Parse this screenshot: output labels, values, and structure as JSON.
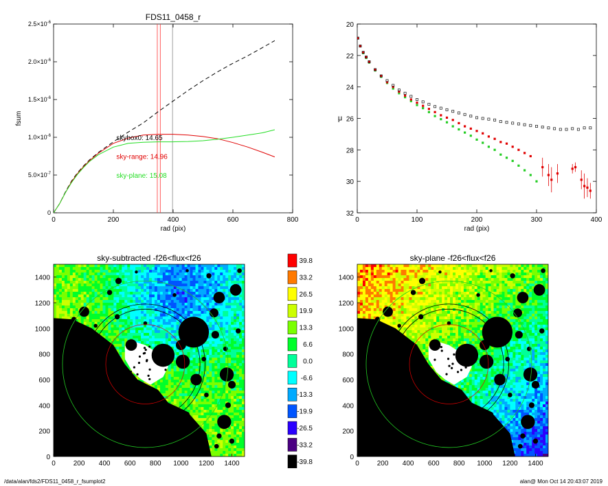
{
  "footer": {
    "path": "/data/alan/fds2/FDS11_0458_r_fsumplot2",
    "stamp": "alan@  Mon Oct 14 20:43:07 2019"
  },
  "chart_data": [
    {
      "type": "line",
      "title": "FDS11_0458_r",
      "xlabel": "rad (pix)",
      "ylabel": "fsum",
      "xlim": [
        0,
        800
      ],
      "ylim": [
        0,
        2.5e-06
      ],
      "xticks": [
        0,
        200,
        400,
        600,
        800
      ],
      "xtick_labels": [
        "0",
        "200",
        "400",
        "600",
        "800"
      ],
      "yticks": [
        0,
        5e-07,
        1e-06,
        1.5e-06,
        2e-06,
        2.5e-06
      ],
      "ytick_labels": [
        {
          "m": "0",
          "e": ""
        },
        {
          "m": "5.0×10",
          "e": "-7"
        },
        {
          "m": "1.0×10",
          "e": "-6"
        },
        {
          "m": "1.5×10",
          "e": "-6"
        },
        {
          "m": "2.0×10",
          "e": "-6"
        },
        {
          "m": "2.5×10",
          "e": "-6"
        }
      ],
      "grid": false,
      "series": [
        {
          "color": "#000000",
          "dash": true,
          "x": [
            0,
            20,
            40,
            60,
            80,
            100,
            120,
            150,
            200,
            250,
            300,
            350,
            400,
            450,
            500,
            550,
            600,
            650,
            700,
            740
          ],
          "y": [
            0,
            1.2e-07,
            2.8e-07,
            4.2e-07,
            5.3e-07,
            6.2e-07,
            7e-07,
            8e-07,
            9.4e-07,
            1.07e-06,
            1.19e-06,
            1.34e-06,
            1.48e-06,
            1.62e-06,
            1.75e-06,
            1.87e-06,
            1.98e-06,
            2.08e-06,
            2.19e-06,
            2.28e-06
          ]
        },
        {
          "color": "#e00000",
          "dash": false,
          "x": [
            0,
            20,
            40,
            60,
            80,
            100,
            120,
            150,
            200,
            250,
            300,
            350,
            400,
            450,
            500,
            550,
            600,
            650,
            700,
            740
          ],
          "y": [
            0,
            1.2e-07,
            2.7e-07,
            4.1e-07,
            5.2e-07,
            6.1e-07,
            6.9e-07,
            7.9e-07,
            9.2e-07,
            9.9e-07,
            1.03e-06,
            1.04e-06,
            1.04e-06,
            1.03e-06,
            1.01e-06,
            9.8e-07,
            9.3e-07,
            8.7e-07,
            8e-07,
            7.4e-07
          ]
        },
        {
          "color": "#22dd22",
          "dash": false,
          "x": [
            0,
            20,
            40,
            60,
            80,
            100,
            120,
            150,
            200,
            250,
            300,
            350,
            400,
            450,
            500,
            550,
            600,
            650,
            700,
            740
          ],
          "y": [
            0,
            1.2e-07,
            2.7e-07,
            4e-07,
            5.1e-07,
            6e-07,
            6.8e-07,
            7.7e-07,
            8.7e-07,
            9.2e-07,
            9.35e-07,
            9.4e-07,
            9.4e-07,
            9.45e-07,
            9.55e-07,
            9.75e-07,
            1e-06,
            1.03e-06,
            1.06e-06,
            1.1e-06
          ]
        }
      ],
      "vlines": [
        {
          "x": 347,
          "color": "#ff3333"
        },
        {
          "x": 357,
          "color": "#ff3333"
        },
        {
          "x": 398,
          "color": "#888888"
        }
      ],
      "annotations": [
        {
          "text": "skybox0: 14.65",
          "x": 210,
          "y": 1e-06,
          "color": "#000000"
        },
        {
          "text": "sky-range: 14.96",
          "x": 210,
          "y": 7.5e-07,
          "color": "#e00000"
        },
        {
          "text": "sky-plane: 15.08",
          "x": 210,
          "y": 5e-07,
          "color": "#22dd22"
        }
      ]
    },
    {
      "type": "scatter",
      "title": "",
      "xlabel": "rad (pix)",
      "ylabel": "μ",
      "xlim": [
        0,
        400
      ],
      "ylim": [
        32,
        20
      ],
      "xticks": [
        0,
        100,
        200,
        300,
        400
      ],
      "yticks": [
        20,
        22,
        24,
        26,
        28,
        30,
        32
      ],
      "grid": false,
      "series": [
        {
          "color": "#111111",
          "marker": "square-open",
          "x": [
            1,
            5,
            10,
            15,
            20,
            30,
            40,
            50,
            60,
            70,
            80,
            90,
            100,
            110,
            120,
            130,
            140,
            150,
            160,
            170,
            180,
            190,
            200,
            210,
            220,
            230,
            240,
            250,
            260,
            270,
            280,
            290,
            300,
            310,
            320,
            330,
            340,
            350,
            360,
            370,
            380,
            390
          ],
          "y": [
            20.9,
            21.4,
            21.8,
            22.1,
            22.4,
            22.9,
            23.3,
            23.6,
            23.9,
            24.2,
            24.4,
            24.6,
            24.8,
            24.95,
            25.1,
            25.25,
            25.35,
            25.45,
            25.55,
            25.65,
            25.75,
            25.85,
            25.95,
            26.0,
            26.05,
            26.1,
            26.2,
            26.25,
            26.3,
            26.35,
            26.4,
            26.45,
            26.5,
            26.55,
            26.6,
            26.65,
            26.7,
            26.7,
            26.65,
            26.7,
            26.6,
            26.6
          ]
        },
        {
          "color": "#e00000",
          "marker": "square-filled",
          "x": [
            1,
            5,
            10,
            15,
            20,
            30,
            40,
            50,
            60,
            70,
            80,
            90,
            100,
            110,
            120,
            130,
            140,
            150,
            160,
            170,
            180,
            190,
            200,
            210,
            220,
            230,
            240,
            250,
            260,
            270,
            280,
            290
          ],
          "y": [
            20.9,
            21.4,
            21.8,
            22.1,
            22.4,
            22.9,
            23.3,
            23.7,
            24.0,
            24.3,
            24.55,
            24.8,
            25.0,
            25.2,
            25.4,
            25.6,
            25.8,
            25.95,
            26.1,
            26.3,
            26.5,
            26.65,
            26.8,
            26.95,
            27.15,
            27.3,
            27.5,
            27.6,
            27.8,
            28.0,
            28.2,
            28.4
          ]
        },
        {
          "color": "#22cc22",
          "marker": "square-filled",
          "x": [
            1,
            5,
            10,
            15,
            20,
            30,
            40,
            50,
            60,
            70,
            80,
            90,
            100,
            110,
            120,
            130,
            140,
            150,
            160,
            170,
            180,
            190,
            200,
            210,
            220,
            230,
            240,
            250,
            260,
            270,
            280,
            290,
            300
          ],
          "y": [
            20.9,
            21.4,
            21.85,
            22.15,
            22.45,
            22.95,
            23.35,
            23.75,
            24.1,
            24.4,
            24.65,
            24.9,
            25.15,
            25.35,
            25.6,
            25.85,
            26.05,
            26.25,
            26.5,
            26.7,
            26.9,
            27.1,
            27.35,
            27.55,
            27.8,
            28.0,
            28.3,
            28.5,
            28.7,
            29.0,
            29.3,
            29.6,
            30.0
          ]
        }
      ],
      "errorbars": [
        {
          "x": 310,
          "y": 29.1,
          "e": 0.6
        },
        {
          "x": 320,
          "y": 29.6,
          "e": 0.7
        },
        {
          "x": 325,
          "y": 29.9,
          "e": 0.8
        },
        {
          "x": 335,
          "y": 29.5,
          "e": 0.6
        },
        {
          "x": 360,
          "y": 29.2,
          "e": 0.3
        },
        {
          "x": 365,
          "y": 29.1,
          "e": 0.3
        },
        {
          "x": 375,
          "y": 29.9,
          "e": 0.6
        },
        {
          "x": 380,
          "y": 30.3,
          "e": 0.8
        },
        {
          "x": 385,
          "y": 30.4,
          "e": 0.6
        },
        {
          "x": 390,
          "y": 30.6,
          "e": 0.5
        }
      ]
    },
    {
      "type": "heatmap",
      "title": "sky-subtracted -f26<flux<f26",
      "xlim": [
        0,
        1500
      ],
      "ylim": [
        0,
        1500
      ],
      "xticks": [
        0,
        200,
        400,
        600,
        800,
        1000,
        1200,
        1400
      ],
      "yticks": [
        0,
        200,
        400,
        600,
        800,
        1000,
        1200,
        1400
      ],
      "circles": {
        "center": [
          720,
          720
        ],
        "green_r": 650,
        "red_r": 310,
        "black_r": [
          430,
          470
        ]
      },
      "blobs": [
        [
          1100,
          970,
          120
        ],
        [
          860,
          790,
          90
        ],
        [
          1015,
          740,
          55
        ],
        [
          1120,
          600,
          45
        ],
        [
          1000,
          870,
          40
        ],
        [
          1340,
          270,
          55
        ],
        [
          1430,
          1300,
          45
        ],
        [
          1300,
          1240,
          45
        ],
        [
          1260,
          1120,
          35
        ],
        [
          1360,
          640,
          55
        ],
        [
          610,
          870,
          45
        ],
        [
          240,
          1130,
          40
        ],
        [
          500,
          1090,
          20
        ],
        [
          510,
          1370,
          25
        ],
        [
          440,
          1280,
          20
        ],
        [
          1270,
          950,
          30
        ],
        [
          900,
          350,
          20
        ],
        [
          1400,
          560,
          30
        ],
        [
          1370,
          400,
          22
        ],
        [
          1200,
          480,
          18
        ],
        [
          1050,
          330,
          18
        ],
        [
          1180,
          180,
          15
        ],
        [
          1300,
          160,
          20
        ],
        [
          1280,
          80,
          18
        ],
        [
          1400,
          120,
          20
        ],
        [
          1460,
          1450,
          18
        ],
        [
          160,
          1070,
          20
        ],
        [
          330,
          1020,
          15
        ],
        [
          720,
          1040,
          15
        ],
        [
          1150,
          1060,
          15
        ],
        [
          1350,
          840,
          18
        ],
        [
          1450,
          980,
          20
        ],
        [
          1220,
          1410,
          20
        ],
        [
          1180,
          760,
          18
        ],
        [
          950,
          1260,
          15
        ],
        [
          650,
          1440,
          12
        ],
        [
          1050,
          1450,
          12
        ]
      ],
      "colorbar": {
        "labels": [
          "39.8",
          "33.2",
          "26.5",
          "19.9",
          "13.3",
          "6.6",
          "0.0",
          "-6.6",
          "-13.3",
          "-19.9",
          "-26.5",
          "-33.2",
          "-39.8"
        ],
        "colors": [
          "#ff0000",
          "#ff7a00",
          "#ffff00",
          "#ccff00",
          "#7aff00",
          "#00ff2a",
          "#00ff99",
          "#00ffff",
          "#00aaff",
          "#0055ff",
          "#2a00ff",
          "#4b0082",
          "#000000"
        ]
      }
    },
    {
      "type": "heatmap",
      "title": "sky-plane -f26<flux<f26",
      "xlim": [
        0,
        1500
      ],
      "ylim": [
        0,
        1500
      ],
      "xticks": [
        0,
        200,
        400,
        600,
        800,
        1000,
        1200,
        1400
      ],
      "yticks": [
        0,
        200,
        400,
        600,
        800,
        1000,
        1200,
        1400
      ]
    }
  ]
}
